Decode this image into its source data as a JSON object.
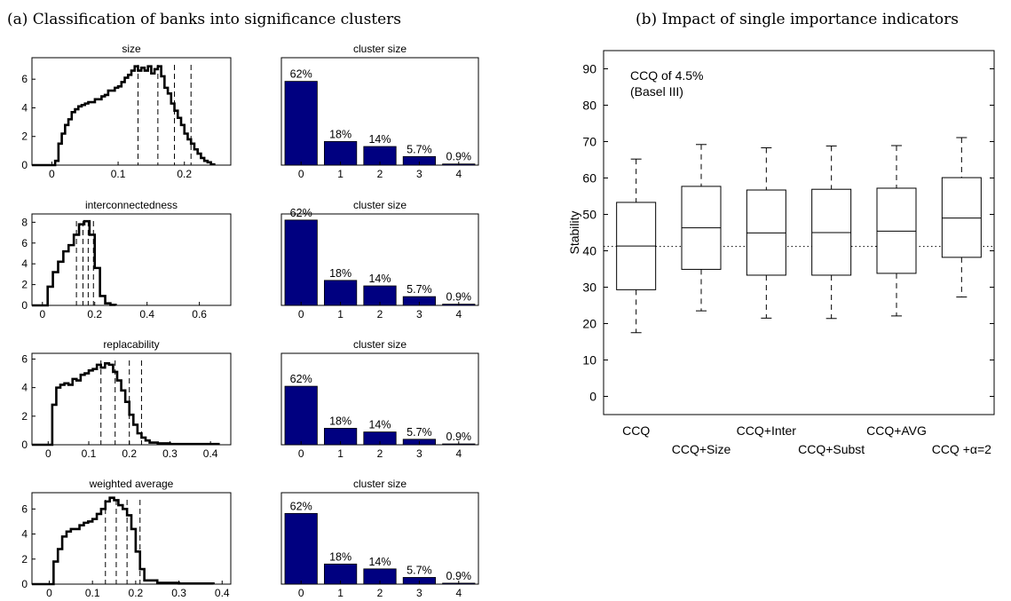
{
  "panel_a": {
    "title": "(a) Classification of banks into significance clusters",
    "histograms": [
      {
        "title": "size",
        "xticks": [
          "0",
          "0.1",
          "0.2"
        ],
        "yticks": [
          "0",
          "2",
          "4",
          "6"
        ],
        "xlim": [
          -0.03,
          0.27
        ],
        "ylim": [
          0,
          7.5
        ],
        "dashed_lines": [
          0.13,
          0.16,
          0.185,
          0.21
        ],
        "outline": [
          [
            -0.005,
            0
          ],
          [
            0.005,
            0.3
          ],
          [
            0.01,
            1.5
          ],
          [
            0.015,
            2.2
          ],
          [
            0.02,
            2.8
          ],
          [
            0.025,
            3.2
          ],
          [
            0.03,
            3.7
          ],
          [
            0.035,
            3.9
          ],
          [
            0.04,
            4.1
          ],
          [
            0.045,
            4.2
          ],
          [
            0.05,
            4.3
          ],
          [
            0.055,
            4.4
          ],
          [
            0.06,
            4.4
          ],
          [
            0.065,
            4.6
          ],
          [
            0.07,
            4.6
          ],
          [
            0.075,
            4.8
          ],
          [
            0.08,
            4.9
          ],
          [
            0.085,
            5.2
          ],
          [
            0.09,
            5.2
          ],
          [
            0.095,
            5.4
          ],
          [
            0.1,
            5.5
          ],
          [
            0.105,
            5.8
          ],
          [
            0.11,
            6.1
          ],
          [
            0.115,
            6.3
          ],
          [
            0.12,
            6.6
          ],
          [
            0.125,
            6.9
          ],
          [
            0.13,
            6.6
          ],
          [
            0.135,
            6.8
          ],
          [
            0.14,
            6.6
          ],
          [
            0.145,
            6.9
          ],
          [
            0.15,
            6.4
          ],
          [
            0.155,
            6.7
          ],
          [
            0.16,
            6.9
          ],
          [
            0.165,
            6.2
          ],
          [
            0.17,
            5.4
          ],
          [
            0.175,
            5.0
          ],
          [
            0.18,
            4.3
          ],
          [
            0.185,
            3.8
          ],
          [
            0.19,
            3.3
          ],
          [
            0.195,
            2.8
          ],
          [
            0.2,
            2.2
          ],
          [
            0.205,
            1.8
          ],
          [
            0.21,
            1.5
          ],
          [
            0.215,
            1.1
          ],
          [
            0.22,
            0.8
          ],
          [
            0.225,
            0.5
          ],
          [
            0.23,
            0.3
          ],
          [
            0.235,
            0.2
          ],
          [
            0.24,
            0.05
          ],
          [
            0.245,
            0
          ]
        ]
      },
      {
        "title": "interconnectedness",
        "xticks": [
          "0",
          "0.2",
          "0.4",
          "0.6"
        ],
        "yticks": [
          "0",
          "2",
          "4",
          "6",
          "8"
        ],
        "xlim": [
          -0.04,
          0.72
        ],
        "ylim": [
          0,
          8.8
        ],
        "dashed_lines": [
          0.13,
          0.155,
          0.175,
          0.195
        ],
        "outline": [
          [
            0,
            0
          ],
          [
            0.02,
            1.8
          ],
          [
            0.04,
            3.2
          ],
          [
            0.06,
            4.2
          ],
          [
            0.08,
            5.2
          ],
          [
            0.1,
            5.8
          ],
          [
            0.12,
            6.8
          ],
          [
            0.14,
            7.8
          ],
          [
            0.16,
            8.1
          ],
          [
            0.18,
            6.8
          ],
          [
            0.2,
            3.6
          ],
          [
            0.22,
            0.9
          ],
          [
            0.24,
            0.2
          ],
          [
            0.26,
            0.05
          ],
          [
            0.28,
            0
          ]
        ]
      },
      {
        "title": "replacability",
        "xticks": [
          "0",
          "0.1",
          "0.2",
          "0.3",
          "0.4"
        ],
        "yticks": [
          "0",
          "2",
          "4",
          "6"
        ],
        "xlim": [
          -0.04,
          0.45
        ],
        "ylim": [
          0,
          6.4
        ],
        "dashed_lines": [
          0.13,
          0.165,
          0.2,
          0.23
        ],
        "outline": [
          [
            0,
            0
          ],
          [
            0.01,
            2.8
          ],
          [
            0.02,
            4.0
          ],
          [
            0.03,
            4.2
          ],
          [
            0.04,
            4.3
          ],
          [
            0.05,
            4.2
          ],
          [
            0.06,
            4.6
          ],
          [
            0.07,
            4.5
          ],
          [
            0.08,
            4.9
          ],
          [
            0.09,
            5.0
          ],
          [
            0.1,
            5.2
          ],
          [
            0.11,
            5.3
          ],
          [
            0.12,
            5.6
          ],
          [
            0.13,
            5.4
          ],
          [
            0.14,
            5.7
          ],
          [
            0.15,
            5.6
          ],
          [
            0.16,
            5.1
          ],
          [
            0.17,
            4.5
          ],
          [
            0.18,
            3.8
          ],
          [
            0.19,
            3.0
          ],
          [
            0.2,
            2.1
          ],
          [
            0.21,
            1.4
          ],
          [
            0.22,
            0.8
          ],
          [
            0.23,
            0.5
          ],
          [
            0.24,
            0.3
          ],
          [
            0.25,
            0.15
          ],
          [
            0.27,
            0.1
          ],
          [
            0.3,
            0.05
          ],
          [
            0.34,
            0.05
          ],
          [
            0.42,
            0
          ]
        ]
      },
      {
        "title": "weighted average",
        "xticks": [
          "0",
          "0.1",
          "0.2",
          "0.3",
          "0.4"
        ],
        "yticks": [
          "0",
          "2",
          "4",
          "6"
        ],
        "xlim": [
          -0.04,
          0.42
        ],
        "ylim": [
          0,
          7.3
        ],
        "dashed_lines": [
          0.13,
          0.155,
          0.18,
          0.21
        ],
        "outline": [
          [
            0,
            0
          ],
          [
            0.01,
            1.8
          ],
          [
            0.02,
            2.8
          ],
          [
            0.03,
            3.8
          ],
          [
            0.04,
            4.2
          ],
          [
            0.05,
            4.4
          ],
          [
            0.06,
            4.4
          ],
          [
            0.07,
            4.7
          ],
          [
            0.08,
            4.9
          ],
          [
            0.09,
            5.0
          ],
          [
            0.1,
            5.2
          ],
          [
            0.11,
            5.6
          ],
          [
            0.12,
            6.0
          ],
          [
            0.13,
            6.6
          ],
          [
            0.14,
            6.9
          ],
          [
            0.15,
            6.7
          ],
          [
            0.16,
            6.3
          ],
          [
            0.17,
            6.0
          ],
          [
            0.18,
            5.5
          ],
          [
            0.19,
            4.4
          ],
          [
            0.2,
            2.6
          ],
          [
            0.21,
            1.2
          ],
          [
            0.22,
            0.3
          ],
          [
            0.25,
            0.1
          ],
          [
            0.3,
            0.05
          ],
          [
            0.38,
            0
          ]
        ]
      }
    ],
    "cluster_charts": [
      {
        "title": "cluster size",
        "ylim": [
          0,
          7.5
        ],
        "yticks": [],
        "bar_heights": [
          5.85,
          1.65,
          1.3,
          0.6,
          0.08
        ]
      },
      {
        "title": "cluster size",
        "ylim": [
          0,
          7.5
        ],
        "yticks": [],
        "bar_heights": [
          7.0,
          2.05,
          1.6,
          0.72,
          0.1
        ]
      },
      {
        "title": "cluster size",
        "ylim": [
          0,
          7.5
        ],
        "yticks": [],
        "bar_heights": [
          4.8,
          1.35,
          1.05,
          0.45,
          0.07
        ]
      },
      {
        "title": "cluster size",
        "ylim": [
          0,
          7.5
        ],
        "yticks": [],
        "bar_heights": [
          5.8,
          1.65,
          1.25,
          0.55,
          0.08
        ]
      }
    ],
    "cluster_categories": [
      "0",
      "1",
      "2",
      "3",
      "4"
    ],
    "cluster_labels": [
      "62%",
      "18%",
      "14%",
      "5.7%",
      "0.9%"
    ]
  },
  "panel_b": {
    "title": "(b) Impact of single importance indicators",
    "annotation_line1": "CCQ of 4.5%",
    "annotation_line2": "(Basel III)",
    "y_ticks": [
      "0",
      "10",
      "20",
      "30",
      "40",
      "50",
      "60",
      "70",
      "80",
      "90"
    ]
  },
  "chart_data": {
    "type": "box",
    "ylabel": "Stability",
    "ylim": [
      -5,
      95
    ],
    "reference_line": 41.2,
    "categories": [
      "CCQ",
      "CCQ+Size",
      "CCQ+Inter",
      "CCQ+Subst",
      "CCQ+AVG",
      "CCQ +α=2"
    ],
    "boxes": [
      {
        "whisker_low": 17.5,
        "q1": 29.3,
        "median": 41.3,
        "q3": 53.3,
        "whisker_high": 65.2
      },
      {
        "whisker_low": 23.5,
        "q1": 34.9,
        "median": 46.3,
        "q3": 57.7,
        "whisker_high": 69.2
      },
      {
        "whisker_low": 21.5,
        "q1": 33.3,
        "median": 44.9,
        "q3": 56.7,
        "whisker_high": 68.3
      },
      {
        "whisker_low": 21.4,
        "q1": 33.3,
        "median": 45.0,
        "q3": 56.9,
        "whisker_high": 68.8
      },
      {
        "whisker_low": 22.1,
        "q1": 33.8,
        "median": 45.4,
        "q3": 57.2,
        "whisker_high": 68.9
      },
      {
        "whisker_low": 27.3,
        "q1": 38.2,
        "median": 49.0,
        "q3": 60.1,
        "whisker_high": 71.1
      }
    ]
  },
  "colors": {
    "bar": "#000080",
    "line": "#000000"
  }
}
